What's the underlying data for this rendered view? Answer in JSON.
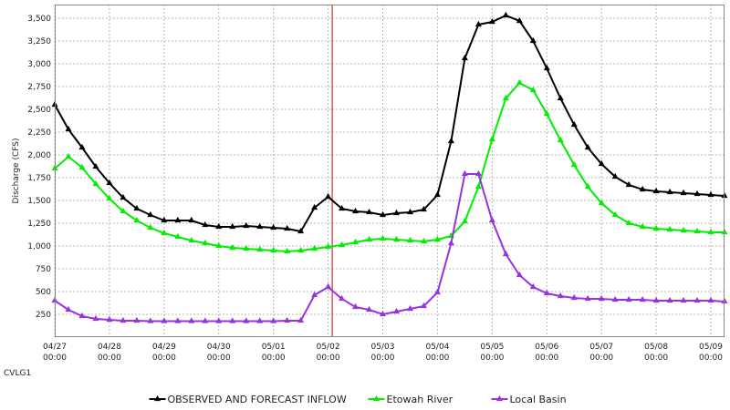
{
  "chart_data": {
    "type": "line",
    "title": "",
    "station_label": "CVLG1",
    "ylabel": "Discharge (CFS)",
    "xlabel": "",
    "ylim": [
      0,
      3650
    ],
    "y_ticks": [
      250,
      500,
      750,
      1000,
      1250,
      1500,
      1750,
      2000,
      2250,
      2500,
      2750,
      3000,
      3250,
      3500
    ],
    "y_tick_labels": [
      "250",
      "500",
      "750",
      "1,000",
      "1,250",
      "1,500",
      "1,750",
      "2,000",
      "2,250",
      "2,500",
      "2,750",
      "3,000",
      "3,250",
      "3,500"
    ],
    "x_unit": "6 hours",
    "x_start": "04/27 00:00",
    "xlim": [
      0,
      49
    ],
    "x_ticks": [
      0,
      4,
      8,
      12,
      16,
      20,
      24,
      28,
      32,
      36,
      40,
      44,
      48
    ],
    "x_tick_labels": [
      {
        "date": "04/27",
        "time": "00:00"
      },
      {
        "date": "04/28",
        "time": "00:00"
      },
      {
        "date": "04/29",
        "time": "00:00"
      },
      {
        "date": "04/30",
        "time": "00:00"
      },
      {
        "date": "05/01",
        "time": "00:00"
      },
      {
        "date": "05/02",
        "time": "00:00"
      },
      {
        "date": "05/03",
        "time": "00:00"
      },
      {
        "date": "05/04",
        "time": "00:00"
      },
      {
        "date": "05/05",
        "time": "00:00"
      },
      {
        "date": "05/06",
        "time": "00:00"
      },
      {
        "date": "05/07",
        "time": "00:00"
      },
      {
        "date": "05/08",
        "time": "00:00"
      },
      {
        "date": "05/09",
        "time": "00:00"
      }
    ],
    "forecast_marker_x": 20.3,
    "grid": true,
    "legend_position": "bottom-center",
    "series": [
      {
        "name": "OBSERVED AND FORECAST INFLOW",
        "color": "#000000",
        "values": [
          2550,
          2280,
          2080,
          1870,
          1690,
          1530,
          1410,
          1340,
          1280,
          1280,
          1280,
          1230,
          1210,
          1210,
          1220,
          1210,
          1200,
          1190,
          1160,
          1420,
          1540,
          1410,
          1380,
          1370,
          1340,
          1360,
          1370,
          1400,
          1560,
          2150,
          3060,
          3430,
          3460,
          3530,
          3470,
          3250,
          2950,
          2620,
          2330,
          2080,
          1900,
          1760,
          1670,
          1620,
          1600,
          1590,
          1580,
          1570,
          1560,
          1550
        ]
      },
      {
        "name": "Etowah River",
        "color": "#00ee00",
        "values": [
          1850,
          1980,
          1860,
          1680,
          1520,
          1380,
          1280,
          1200,
          1140,
          1100,
          1060,
          1030,
          1000,
          980,
          970,
          960,
          950,
          940,
          950,
          970,
          990,
          1010,
          1040,
          1070,
          1080,
          1070,
          1060,
          1050,
          1070,
          1110,
          1270,
          1650,
          2170,
          2620,
          2790,
          2710,
          2450,
          2160,
          1890,
          1650,
          1470,
          1340,
          1250,
          1210,
          1190,
          1180,
          1170,
          1160,
          1150,
          1150
        ]
      },
      {
        "name": "Local Basin",
        "color": "#9933dd",
        "values": [
          400,
          300,
          230,
          200,
          190,
          180,
          180,
          175,
          175,
          175,
          175,
          175,
          175,
          175,
          175,
          175,
          175,
          180,
          180,
          460,
          550,
          420,
          330,
          300,
          250,
          280,
          310,
          340,
          490,
          1030,
          1790,
          1790,
          1280,
          910,
          680,
          550,
          480,
          450,
          430,
          420,
          420,
          410,
          410,
          410,
          400,
          400,
          400,
          400,
          400,
          390
        ]
      }
    ]
  }
}
